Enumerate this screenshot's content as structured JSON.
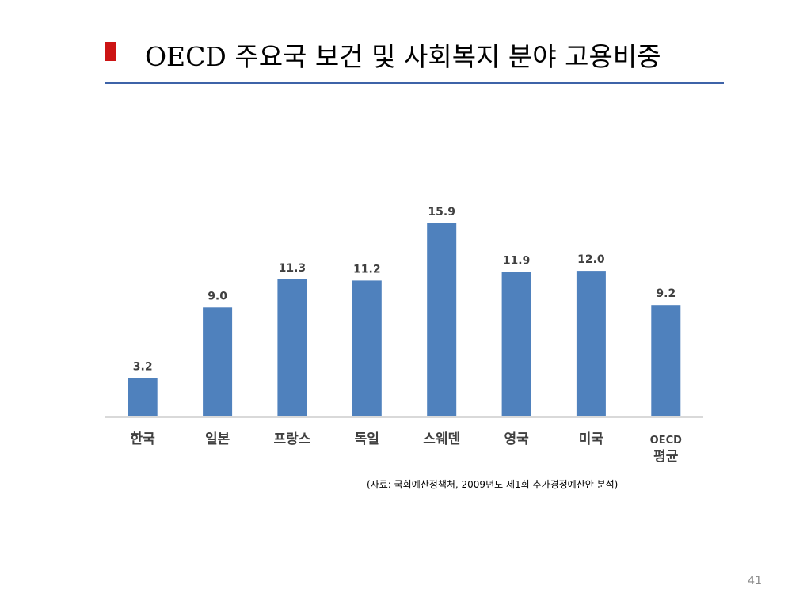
{
  "slide": {
    "title": "OECD 주요국 보건 및 사회복지 분야 고용비중",
    "source_note": "(자료: 국회예산정책처, 2009년도 제1회 추가경정예산안 분석)",
    "page_number": "41",
    "colors": {
      "bullet": "#cc1414",
      "rule": "#3e63a8"
    }
  },
  "chart_data": {
    "type": "bar",
    "title": "",
    "xlabel": "",
    "ylabel": "",
    "categories": [
      "한국",
      "일본",
      "프랑스",
      "독일",
      "스웨덴",
      "영국",
      "미국",
      "OECD 평균"
    ],
    "category_lines": [
      [
        "한국"
      ],
      [
        "일본"
      ],
      [
        "프랑스"
      ],
      [
        "독일"
      ],
      [
        "스웨덴"
      ],
      [
        "영국"
      ],
      [
        "미국"
      ],
      [
        "OECD",
        "평균"
      ]
    ],
    "values": [
      3.2,
      9.0,
      11.3,
      11.2,
      15.9,
      11.9,
      12.0,
      9.2
    ],
    "value_labels": [
      "3.2",
      "9.0",
      "11.3",
      "11.2",
      "15.9",
      "11.9",
      "12.0",
      "9.2"
    ],
    "ylim": [
      0,
      15.9
    ],
    "grid": false,
    "legend": "none",
    "bar_color": "#4f81bd"
  }
}
